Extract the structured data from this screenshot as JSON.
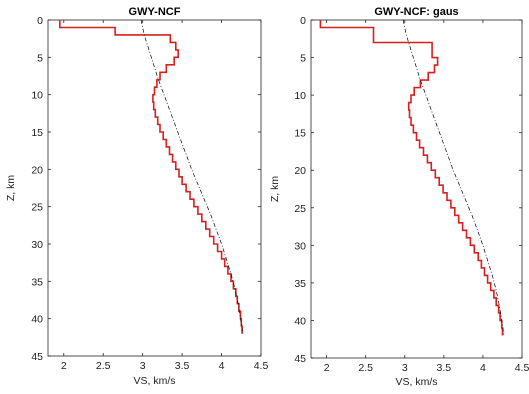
{
  "chart_data": [
    {
      "type": "line",
      "title": "GWY-NCF",
      "xlabel": "VS, km/s",
      "ylabel": "Z, km",
      "xlim": [
        1.8,
        4.5
      ],
      "ylim": [
        0,
        45
      ],
      "y_reversed": true,
      "xticks": [
        "2",
        "2.5",
        "3",
        "3.5",
        "4",
        "4.5"
      ],
      "yticks": [
        "0",
        "5",
        "10",
        "15",
        "20",
        "25",
        "30",
        "35",
        "40",
        "45"
      ],
      "grid": false,
      "series": [
        {
          "style": "red-step",
          "color": "#d62020",
          "z": [
            0,
            1,
            1,
            2,
            2,
            3,
            3,
            4,
            4,
            5,
            5,
            6,
            6,
            7,
            7,
            8,
            8,
            9,
            9,
            10,
            10,
            11,
            11,
            12,
            12,
            13,
            13,
            14,
            14,
            15,
            15,
            16,
            16,
            17,
            17,
            18,
            18,
            19,
            19,
            20,
            20,
            21,
            21,
            22,
            22,
            23,
            23,
            24,
            24,
            25,
            25,
            26,
            26,
            27,
            27,
            28,
            28,
            29,
            29,
            30,
            30,
            31,
            31,
            32,
            32,
            33,
            33,
            34,
            34,
            35,
            35,
            36,
            36,
            37,
            37,
            38,
            38,
            39,
            39,
            40,
            40,
            41,
            41,
            42
          ],
          "vs": [
            1.95,
            1.95,
            2.65,
            2.65,
            3.35,
            3.35,
            3.42,
            3.42,
            3.45,
            3.45,
            3.4,
            3.4,
            3.3,
            3.3,
            3.22,
            3.22,
            3.18,
            3.18,
            3.15,
            3.15,
            3.13,
            3.13,
            3.14,
            3.14,
            3.16,
            3.16,
            3.19,
            3.19,
            3.22,
            3.22,
            3.26,
            3.26,
            3.3,
            3.3,
            3.34,
            3.34,
            3.38,
            3.38,
            3.42,
            3.42,
            3.46,
            3.46,
            3.5,
            3.5,
            3.55,
            3.55,
            3.6,
            3.6,
            3.65,
            3.65,
            3.7,
            3.7,
            3.75,
            3.75,
            3.8,
            3.8,
            3.85,
            3.85,
            3.9,
            3.9,
            3.95,
            3.95,
            4.0,
            4.0,
            4.04,
            4.04,
            4.08,
            4.08,
            4.12,
            4.12,
            4.15,
            4.15,
            4.18,
            4.18,
            4.2,
            4.2,
            4.22,
            4.22,
            4.24,
            4.24,
            4.25,
            4.25,
            4.26,
            4.26
          ]
        },
        {
          "style": "black-dashdot",
          "color": "#000000",
          "z": [
            0,
            2,
            4,
            6,
            8,
            10,
            12,
            14,
            16,
            18,
            20,
            22,
            24,
            26,
            28,
            30,
            32,
            34,
            36,
            38,
            40,
            42
          ],
          "vs": [
            2.98,
            3.02,
            3.08,
            3.14,
            3.2,
            3.27,
            3.34,
            3.41,
            3.48,
            3.55,
            3.62,
            3.7,
            3.78,
            3.86,
            3.93,
            4.0,
            4.06,
            4.12,
            4.17,
            4.21,
            4.24,
            4.27
          ]
        }
      ]
    },
    {
      "type": "line",
      "title": "GWY-NCF: gaus",
      "xlabel": "VS, km/s",
      "ylabel": "Z, km",
      "xlim": [
        1.8,
        4.5
      ],
      "ylim": [
        0,
        45
      ],
      "y_reversed": true,
      "xticks": [
        "2",
        "2.5",
        "3",
        "3.5",
        "4",
        "4.5"
      ],
      "yticks": [
        "0",
        "5",
        "10",
        "15",
        "20",
        "25",
        "30",
        "35",
        "40",
        "45"
      ],
      "grid": false,
      "series": [
        {
          "style": "red-step",
          "color": "#d62020",
          "z": [
            0,
            1,
            1,
            3,
            3,
            5,
            5,
            6,
            6,
            7,
            7,
            8,
            8,
            9,
            9,
            10,
            10,
            11,
            11,
            12,
            12,
            13,
            13,
            14,
            14,
            15,
            15,
            16,
            16,
            17,
            17,
            18,
            18,
            19,
            19,
            20,
            20,
            21,
            21,
            22,
            22,
            23,
            23,
            24,
            24,
            25,
            25,
            26,
            26,
            27,
            27,
            28,
            28,
            29,
            29,
            30,
            30,
            31,
            31,
            32,
            32,
            33,
            33,
            34,
            34,
            35,
            35,
            36,
            36,
            37,
            37,
            38,
            38,
            39,
            39,
            40,
            40,
            41,
            41,
            42
          ],
          "vs": [
            1.92,
            1.92,
            2.6,
            2.6,
            3.35,
            3.35,
            3.42,
            3.42,
            3.38,
            3.38,
            3.3,
            3.3,
            3.2,
            3.2,
            3.12,
            3.12,
            3.08,
            3.08,
            3.05,
            3.05,
            3.06,
            3.06,
            3.08,
            3.08,
            3.11,
            3.11,
            3.15,
            3.15,
            3.19,
            3.19,
            3.24,
            3.24,
            3.29,
            3.29,
            3.34,
            3.34,
            3.39,
            3.39,
            3.44,
            3.44,
            3.49,
            3.49,
            3.54,
            3.54,
            3.59,
            3.59,
            3.64,
            3.64,
            3.69,
            3.69,
            3.74,
            3.74,
            3.79,
            3.79,
            3.84,
            3.84,
            3.89,
            3.89,
            3.94,
            3.94,
            3.98,
            3.98,
            4.02,
            4.02,
            4.06,
            4.06,
            4.1,
            4.1,
            4.14,
            4.14,
            4.17,
            4.17,
            4.2,
            4.2,
            4.22,
            4.22,
            4.24,
            4.24,
            4.25,
            4.25
          ]
        },
        {
          "style": "black-dashdot",
          "color": "#000000",
          "z": [
            0,
            2,
            4,
            6,
            8,
            10,
            12,
            14,
            16,
            18,
            20,
            22,
            24,
            26,
            28,
            30,
            32,
            34,
            36,
            38,
            40,
            42
          ],
          "vs": [
            2.98,
            3.02,
            3.08,
            3.14,
            3.2,
            3.27,
            3.34,
            3.41,
            3.48,
            3.55,
            3.62,
            3.7,
            3.78,
            3.86,
            3.93,
            4.0,
            4.06,
            4.12,
            4.17,
            4.21,
            4.24,
            4.27
          ]
        }
      ]
    }
  ]
}
